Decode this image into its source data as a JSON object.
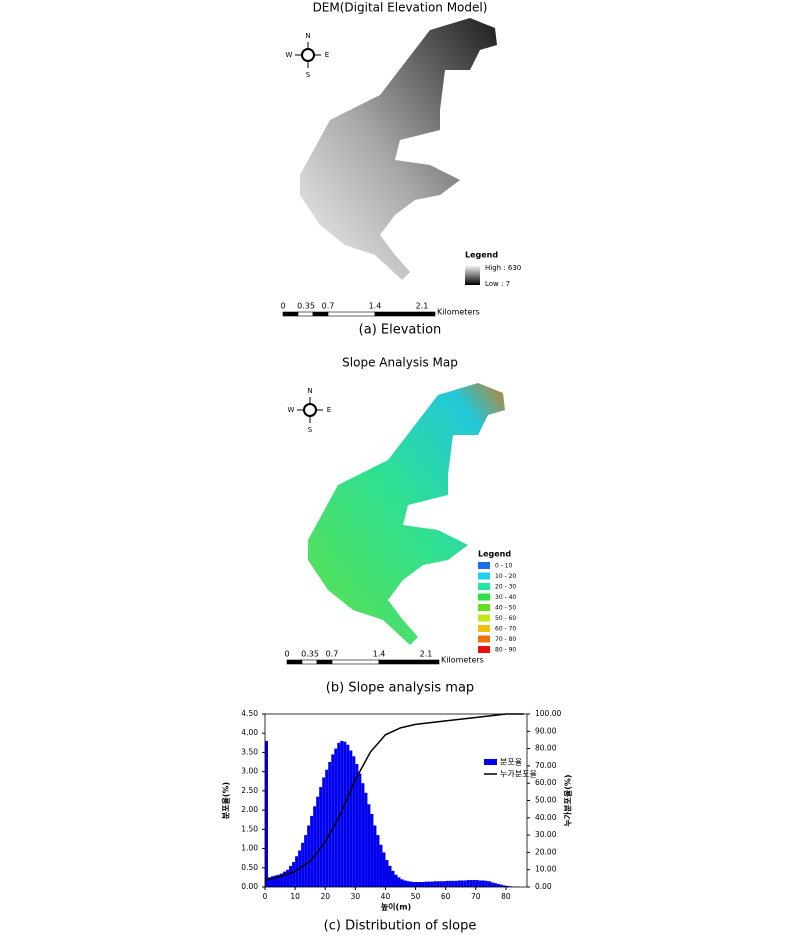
{
  "panels": [
    {
      "title": "DEM(Digital Elevation Model)",
      "compass": [
        "N",
        "E",
        "S",
        "W"
      ],
      "legend": {
        "title": "Legend",
        "items": [
          {
            "label": "High : 630",
            "color": "#ffffff"
          },
          {
            "label": "Low : 7",
            "color": "#000000"
          }
        ]
      },
      "scale": {
        "labels": [
          "0",
          "0.35",
          "0.7",
          "1.4",
          "2.1"
        ],
        "unit": "Kilometers"
      },
      "caption": "(a) Elevation"
    },
    {
      "title": "Slope Analysis Map",
      "compass": [
        "N",
        "E",
        "S",
        "W"
      ],
      "legend": {
        "title": "Legend",
        "items": [
          {
            "label": "0 - 10",
            "color": "#1a6fe8"
          },
          {
            "label": "10 - 20",
            "color": "#1fd0f0"
          },
          {
            "label": "20 - 30",
            "color": "#22e8a0"
          },
          {
            "label": "30 - 40",
            "color": "#2de04a"
          },
          {
            "label": "40 - 50",
            "color": "#66e01a"
          },
          {
            "label": "50 - 60",
            "color": "#c6e61a"
          },
          {
            "label": "60 - 70",
            "color": "#f0c010"
          },
          {
            "label": "70 - 80",
            "color": "#f07010"
          },
          {
            "label": "80 - 90",
            "color": "#e81010"
          }
        ]
      },
      "scale": {
        "labels": [
          "0",
          "0.35",
          "0.7",
          "1.4",
          "2.1"
        ],
        "unit": "Kilometers"
      },
      "caption": "(b) Slope analysis map"
    }
  ],
  "chart_data": {
    "type": "histogram",
    "caption": "(c) Distribution of slope",
    "xlabel": "높이(m)",
    "ylabel": "분포율(%)",
    "y2label": "누가분포율(%)",
    "bins": [
      0,
      1,
      2,
      3,
      4,
      5,
      6,
      7,
      8,
      9,
      10,
      11,
      12,
      13,
      14,
      15,
      16,
      17,
      18,
      19,
      20,
      21,
      22,
      23,
      24,
      25,
      26,
      27,
      28,
      29,
      30,
      31,
      32,
      33,
      34,
      35,
      36,
      37,
      38,
      39,
      40,
      41,
      42,
      43,
      44,
      45,
      46,
      47,
      48,
      49,
      50,
      51,
      52,
      53,
      54,
      55,
      56,
      57,
      58,
      59,
      60,
      61,
      62,
      63,
      64,
      65,
      66,
      67,
      68,
      69,
      70,
      71,
      72,
      73,
      74,
      75,
      76,
      77,
      78,
      79,
      80,
      81,
      82,
      83,
      84,
      85,
      86
    ],
    "series": [
      {
        "name": "분포율",
        "color": "#0000ee",
        "values": [
          3.8,
          0.25,
          0.28,
          0.3,
          0.32,
          0.35,
          0.4,
          0.45,
          0.55,
          0.65,
          0.8,
          0.95,
          1.15,
          1.35,
          1.6,
          1.85,
          2.1,
          2.35,
          2.6,
          2.85,
          3.05,
          3.25,
          3.45,
          3.6,
          3.75,
          3.8,
          3.78,
          3.7,
          3.55,
          3.4,
          3.2,
          2.95,
          2.7,
          2.45,
          2.15,
          1.9,
          1.6,
          1.35,
          1.1,
          0.9,
          0.7,
          0.55,
          0.42,
          0.32,
          0.25,
          0.2,
          0.17,
          0.15,
          0.14,
          0.13,
          0.13,
          0.13,
          0.13,
          0.14,
          0.14,
          0.14,
          0.15,
          0.15,
          0.15,
          0.15,
          0.16,
          0.16,
          0.16,
          0.16,
          0.17,
          0.17,
          0.17,
          0.18,
          0.18,
          0.18,
          0.18,
          0.17,
          0.17,
          0.16,
          0.15,
          0.12,
          0.1,
          0.08,
          0.06,
          0.04,
          0.03,
          0.02,
          0.01,
          0.01,
          0,
          0
        ]
      },
      {
        "name": "누가분포율",
        "color": "#000000",
        "type": "line",
        "axis": "y2",
        "x": [
          0,
          5,
          10,
          15,
          20,
          25,
          30,
          35,
          40,
          45,
          50,
          60,
          70,
          80,
          86
        ],
        "values": [
          4,
          6,
          9,
          15,
          26,
          42,
          62,
          78,
          88,
          92,
          94,
          96,
          98,
          100,
          100
        ]
      }
    ],
    "xlim": [
      0,
      87
    ],
    "ylim": [
      0,
      4.5
    ],
    "y2lim": [
      0,
      100
    ],
    "xticks": [
      0,
      10,
      20,
      30,
      40,
      50,
      60,
      70,
      80
    ],
    "yticks": [
      {
        "value": 0,
        "label": "0.00"
      },
      {
        "value": 0.5,
        "label": "0.50"
      },
      {
        "value": 1,
        "label": "1.00"
      },
      {
        "value": 1.5,
        "label": "1.50"
      },
      {
        "value": 2,
        "label": "2.00"
      },
      {
        "value": 2.5,
        "label": "2.50"
      },
      {
        "value": 3,
        "label": "3.00"
      },
      {
        "value": 3.5,
        "label": "3.50"
      },
      {
        "value": 4,
        "label": "4.00"
      },
      {
        "value": 4.5,
        "label": "4.50"
      }
    ],
    "y2ticks": [
      {
        "value": 0,
        "label": "0.00"
      },
      {
        "value": 10,
        "label": "10.00"
      },
      {
        "value": 20,
        "label": "20.00"
      },
      {
        "value": 30,
        "label": "30.00"
      },
      {
        "value": 40,
        "label": "40.00"
      },
      {
        "value": 50,
        "label": "50.00"
      },
      {
        "value": 60,
        "label": "60.00"
      },
      {
        "value": 70,
        "label": "70.00"
      },
      {
        "value": 80,
        "label": "80.00"
      },
      {
        "value": 90,
        "label": "90.00"
      },
      {
        "value": 100,
        "label": "100.00"
      }
    ]
  }
}
